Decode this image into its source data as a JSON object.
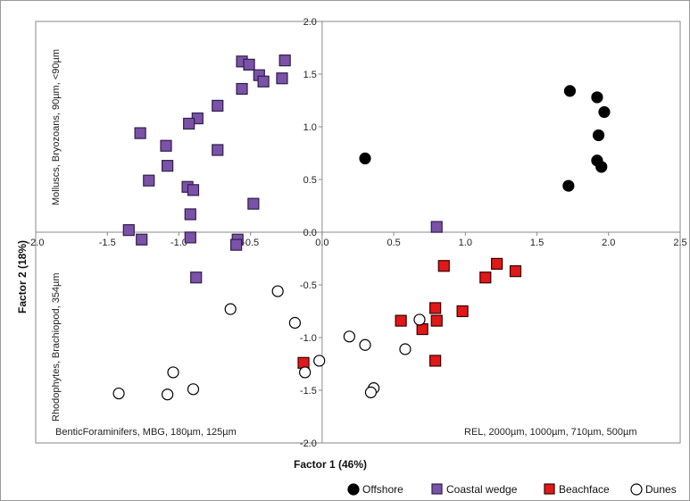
{
  "chart_data": {
    "type": "scatter",
    "xlabel": "Factor 1 (46%)",
    "ylabel": "Factor 2 (18%)",
    "xlim": [
      -2.0,
      2.5
    ],
    "ylim": [
      -2.0,
      2.0
    ],
    "x_ticks": [
      "-2.0",
      "-1.5",
      "-1.0",
      "-0.5",
      "0.0",
      "0.5",
      "1.0",
      "1.5",
      "2.0",
      "2.5"
    ],
    "y_ticks": [
      "2.0",
      "1.5",
      "1.0",
      "0.5",
      "0.0",
      "-0.5",
      "-1.0",
      "-1.5",
      "-2.0"
    ],
    "x_tick_values": [
      -2.0,
      -1.5,
      -1.0,
      -0.5,
      0.0,
      0.5,
      1.0,
      1.5,
      2.0,
      2.5
    ],
    "y_tick_values": [
      2.0,
      1.5,
      1.0,
      0.5,
      0.0,
      -0.5,
      -1.0,
      -1.5,
      -2.0
    ],
    "grid": false,
    "legend_position": "bottom-right",
    "quadrant_labels": {
      "upper_left": "Molluscs, Bryozoans, 90µm, <90µm",
      "lower_left_vertical": "Rhodophytes, Brachiopod, 354µm",
      "lower_left": "BenticForaminifers, MBG, 180µm, 125µm",
      "lower_right": "REL, 2000µm, 1000µm, 710µm, 500µm"
    },
    "series": [
      {
        "name": "Offshore",
        "marker": "circle",
        "color": "#000000",
        "stroke": "#000000",
        "points": [
          [
            0.3,
            0.7
          ],
          [
            1.73,
            1.34
          ],
          [
            1.92,
            1.28
          ],
          [
            1.97,
            1.14
          ],
          [
            1.93,
            0.92
          ],
          [
            1.92,
            0.68
          ],
          [
            1.95,
            0.62
          ],
          [
            1.72,
            0.44
          ]
        ]
      },
      {
        "name": "Coastal wedge",
        "marker": "square",
        "color": "#7b52a8",
        "stroke": "#2d1f4a",
        "points": [
          [
            -0.56,
            1.62
          ],
          [
            -0.51,
            1.59
          ],
          [
            -0.26,
            1.63
          ],
          [
            -0.44,
            1.49
          ],
          [
            -0.41,
            1.43
          ],
          [
            -0.28,
            1.46
          ],
          [
            -0.56,
            1.36
          ],
          [
            -0.73,
            1.2
          ],
          [
            -0.87,
            1.08
          ],
          [
            -0.93,
            1.03
          ],
          [
            -1.27,
            0.94
          ],
          [
            -1.09,
            0.82
          ],
          [
            -0.73,
            0.78
          ],
          [
            -1.08,
            0.63
          ],
          [
            -1.21,
            0.49
          ],
          [
            -0.94,
            0.43
          ],
          [
            -0.9,
            0.4
          ],
          [
            -0.48,
            0.27
          ],
          [
            -0.92,
            0.17
          ],
          [
            -1.35,
            0.02
          ],
          [
            -1.26,
            -0.07
          ],
          [
            -0.92,
            -0.05
          ],
          [
            -0.59,
            -0.07
          ],
          [
            -0.6,
            -0.12
          ],
          [
            -0.88,
            -0.43
          ],
          [
            0.8,
            0.05
          ]
        ]
      },
      {
        "name": "Beachface",
        "marker": "square",
        "color": "#e01818",
        "stroke": "#3a0000",
        "points": [
          [
            0.85,
            -0.32
          ],
          [
            1.22,
            -0.3
          ],
          [
            1.35,
            -0.37
          ],
          [
            1.14,
            -0.43
          ],
          [
            0.79,
            -0.72
          ],
          [
            0.98,
            -0.75
          ],
          [
            0.55,
            -0.84
          ],
          [
            0.8,
            -0.84
          ],
          [
            0.7,
            -0.92
          ],
          [
            0.79,
            -1.22
          ],
          [
            -0.13,
            -1.24
          ]
        ]
      },
      {
        "name": "Dunes",
        "marker": "circle",
        "color": "#ffffff",
        "stroke": "#000000",
        "points": [
          [
            -0.31,
            -0.56
          ],
          [
            -0.64,
            -0.73
          ],
          [
            -0.19,
            -0.86
          ],
          [
            0.68,
            -0.83
          ],
          [
            0.19,
            -0.99
          ],
          [
            0.3,
            -1.07
          ],
          [
            0.58,
            -1.11
          ],
          [
            -0.02,
            -1.22
          ],
          [
            -0.12,
            -1.33
          ],
          [
            0.36,
            -1.48
          ],
          [
            0.34,
            -1.52
          ],
          [
            -1.04,
            -1.33
          ],
          [
            -0.9,
            -1.49
          ],
          [
            -1.08,
            -1.54
          ],
          [
            -1.42,
            -1.53
          ]
        ]
      }
    ]
  }
}
